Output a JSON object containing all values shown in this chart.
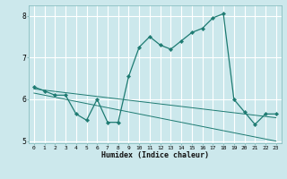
{
  "bg_color": "#cce8ec",
  "grid_color": "#ffffff",
  "line_color": "#1e7b72",
  "x_values": [
    0,
    1,
    2,
    3,
    4,
    5,
    6,
    7,
    8,
    9,
    10,
    11,
    12,
    13,
    14,
    15,
    16,
    17,
    18,
    19,
    20,
    21,
    22,
    23
  ],
  "series_main": [
    6.3,
    6.2,
    6.1,
    6.1,
    5.65,
    5.5,
    6.0,
    5.45,
    5.45,
    6.55,
    7.25,
    7.5,
    7.3,
    7.2,
    7.4,
    7.6,
    7.7,
    7.95,
    8.05,
    6.0,
    5.7,
    5.4,
    5.65,
    5.65
  ],
  "series_reg1": [
    6.15,
    6.1,
    6.05,
    6.0,
    5.95,
    5.9,
    5.85,
    5.8,
    5.75,
    5.7,
    5.65,
    5.6,
    5.55,
    5.5,
    5.45,
    5.4,
    5.35,
    5.3,
    5.25,
    5.2,
    5.15,
    5.1,
    5.05,
    5.0
  ],
  "series_reg2": [
    6.25,
    6.22,
    6.19,
    6.16,
    6.13,
    6.1,
    6.07,
    6.04,
    6.01,
    5.98,
    5.95,
    5.92,
    5.89,
    5.86,
    5.83,
    5.8,
    5.77,
    5.74,
    5.71,
    5.68,
    5.65,
    5.62,
    5.59,
    5.56
  ],
  "xlabel": "Humidex (Indice chaleur)",
  "xlim": [
    -0.5,
    23.5
  ],
  "ylim": [
    4.95,
    8.25
  ],
  "yticks": [
    5,
    6,
    7,
    8
  ],
  "xticks": [
    0,
    1,
    2,
    3,
    4,
    5,
    6,
    7,
    8,
    9,
    10,
    11,
    12,
    13,
    14,
    15,
    16,
    17,
    18,
    19,
    20,
    21,
    22,
    23
  ]
}
